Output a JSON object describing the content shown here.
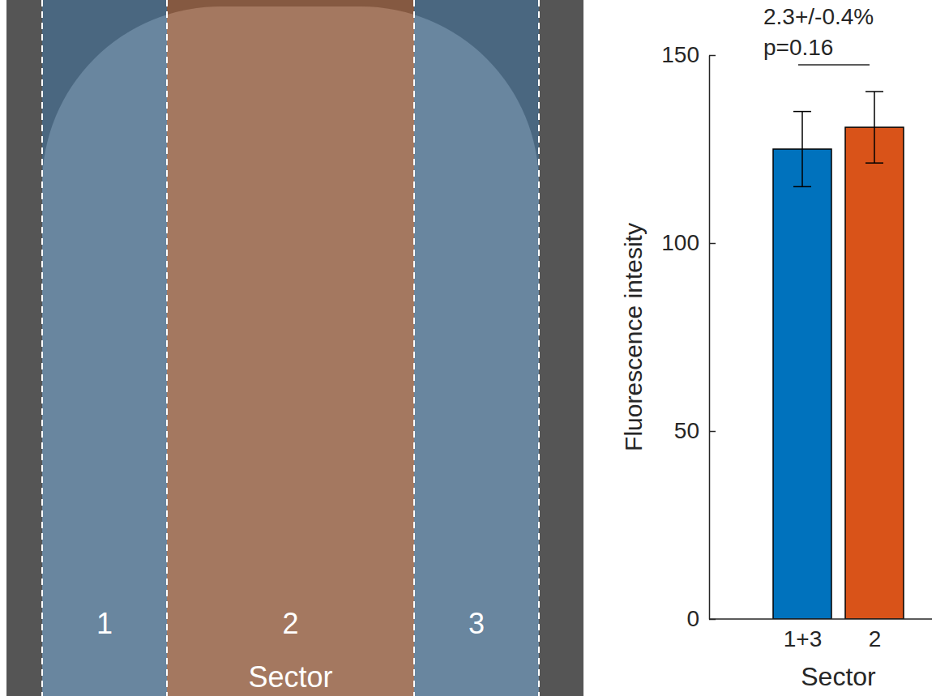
{
  "chart_data": {
    "type": "bar",
    "categories": [
      "1+3",
      "2"
    ],
    "values": [
      125,
      130.8
    ],
    "errors": [
      10,
      9.5
    ],
    "colors": [
      "#0072bd",
      "#d95319"
    ],
    "ylim": [
      0,
      150
    ],
    "yticks": [
      0,
      50,
      100,
      150
    ],
    "y_label": "Fluorescence intesity",
    "x_label": "Sector",
    "annotations": [
      "2.3+/-0.4%",
      "p=0.16"
    ]
  },
  "image_panel": {
    "sector_labels": [
      "1",
      "2",
      "3"
    ],
    "caption": "Sector",
    "colors": [
      "#3f7fb5",
      "#c0602a",
      "#3f7fb5"
    ]
  }
}
